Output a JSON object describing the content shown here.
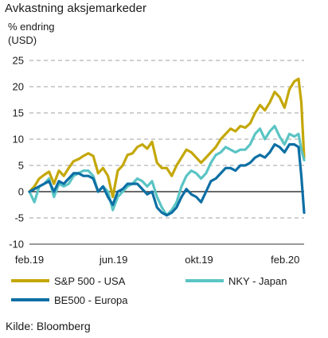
{
  "chart_data": {
    "type": "line",
    "title": "Avkastning aksjemarkeder",
    "ylabel": "% endring (USD)",
    "ylabel_lines": [
      "% endring",
      "(USD)"
    ],
    "ylim": [
      -10,
      25
    ],
    "yticks": [
      -10,
      -5,
      0,
      5,
      10,
      15,
      20,
      25
    ],
    "xlim": [
      "2019-02-01",
      "2020-02-28"
    ],
    "xticks": [
      {
        "label": "feb.19",
        "date": "2019-02-01"
      },
      {
        "label": "jun.19",
        "date": "2019-06-01"
      },
      {
        "label": "okt.19",
        "date": "2019-10-01"
      },
      {
        "label": "feb.20",
        "date": "2020-02-01"
      }
    ],
    "grid": "horizontal-dashed",
    "legend_position": "bottom",
    "series": [
      {
        "name": "S&P 500 - USA",
        "color": "#c4a707",
        "points": [
          [
            "2019-02-01",
            0
          ],
          [
            "2019-02-08",
            1
          ],
          [
            "2019-02-15",
            2.5
          ],
          [
            "2019-02-22",
            3.2
          ],
          [
            "2019-03-01",
            3.8
          ],
          [
            "2019-03-08",
            1.5
          ],
          [
            "2019-03-15",
            4
          ],
          [
            "2019-03-22",
            3
          ],
          [
            "2019-03-29",
            4.5
          ],
          [
            "2019-04-05",
            5.8
          ],
          [
            "2019-04-12",
            6.2
          ],
          [
            "2019-04-19",
            6.8
          ],
          [
            "2019-04-26",
            7.3
          ],
          [
            "2019-05-03",
            6.8
          ],
          [
            "2019-05-10",
            3.5
          ],
          [
            "2019-05-17",
            4.5
          ],
          [
            "2019-05-24",
            3
          ],
          [
            "2019-05-31",
            -1
          ],
          [
            "2019-06-07",
            4
          ],
          [
            "2019-06-14",
            5
          ],
          [
            "2019-06-21",
            7
          ],
          [
            "2019-06-28",
            7.3
          ],
          [
            "2019-07-05",
            8.5
          ],
          [
            "2019-07-12",
            9
          ],
          [
            "2019-07-19",
            8.2
          ],
          [
            "2019-07-26",
            9.5
          ],
          [
            "2019-08-02",
            5.5
          ],
          [
            "2019-08-09",
            4.5
          ],
          [
            "2019-08-16",
            4.5
          ],
          [
            "2019-08-23",
            3
          ],
          [
            "2019-08-30",
            5
          ],
          [
            "2019-09-06",
            6.5
          ],
          [
            "2019-09-13",
            8
          ],
          [
            "2019-09-20",
            7.5
          ],
          [
            "2019-09-27",
            6.5
          ],
          [
            "2019-10-04",
            5.5
          ],
          [
            "2019-10-11",
            6.5
          ],
          [
            "2019-10-18",
            7.5
          ],
          [
            "2019-10-25",
            8.5
          ],
          [
            "2019-11-01",
            10
          ],
          [
            "2019-11-08",
            11
          ],
          [
            "2019-11-15",
            12
          ],
          [
            "2019-11-22",
            11.5
          ],
          [
            "2019-11-29",
            12.5
          ],
          [
            "2019-12-06",
            12.2
          ],
          [
            "2019-12-13",
            13
          ],
          [
            "2019-12-20",
            15
          ],
          [
            "2019-12-27",
            16.5
          ],
          [
            "2020-01-03",
            15.5
          ],
          [
            "2020-01-10",
            17
          ],
          [
            "2020-01-17",
            19
          ],
          [
            "2020-01-24",
            18
          ],
          [
            "2020-01-31",
            16
          ],
          [
            "2020-02-07",
            19.5
          ],
          [
            "2020-02-14",
            21
          ],
          [
            "2020-02-20",
            21.5
          ],
          [
            "2020-02-24",
            17
          ],
          [
            "2020-02-28",
            6.5
          ]
        ]
      },
      {
        "name": "NKY - Japan",
        "color": "#5bc4c4",
        "points": [
          [
            "2019-02-01",
            0
          ],
          [
            "2019-02-08",
            -2
          ],
          [
            "2019-02-15",
            1
          ],
          [
            "2019-02-22",
            1.5
          ],
          [
            "2019-03-01",
            2.5
          ],
          [
            "2019-03-08",
            -1
          ],
          [
            "2019-03-15",
            1.5
          ],
          [
            "2019-03-22",
            1
          ],
          [
            "2019-03-29",
            1.5
          ],
          [
            "2019-04-05",
            3
          ],
          [
            "2019-04-12",
            3.5
          ],
          [
            "2019-04-19",
            4
          ],
          [
            "2019-04-26",
            4
          ],
          [
            "2019-05-03",
            3
          ],
          [
            "2019-05-10",
            0
          ],
          [
            "2019-05-17",
            1
          ],
          [
            "2019-05-24",
            0
          ],
          [
            "2019-05-31",
            -3.5
          ],
          [
            "2019-06-07",
            -1
          ],
          [
            "2019-06-14",
            0
          ],
          [
            "2019-06-21",
            1
          ],
          [
            "2019-06-28",
            1.5
          ],
          [
            "2019-07-05",
            2.5
          ],
          [
            "2019-07-12",
            2
          ],
          [
            "2019-07-19",
            1
          ],
          [
            "2019-07-26",
            2
          ],
          [
            "2019-08-02",
            -1
          ],
          [
            "2019-08-09",
            -3
          ],
          [
            "2019-08-16",
            -4.5
          ],
          [
            "2019-08-23",
            -3.5
          ],
          [
            "2019-08-30",
            -2
          ],
          [
            "2019-09-06",
            1
          ],
          [
            "2019-09-13",
            3
          ],
          [
            "2019-09-20",
            4
          ],
          [
            "2019-09-27",
            3.5
          ],
          [
            "2019-10-04",
            2.5
          ],
          [
            "2019-10-11",
            3.5
          ],
          [
            "2019-10-18",
            5.5
          ],
          [
            "2019-10-25",
            7
          ],
          [
            "2019-11-01",
            7.5
          ],
          [
            "2019-11-08",
            8.5
          ],
          [
            "2019-11-15",
            8
          ],
          [
            "2019-11-22",
            7.5
          ],
          [
            "2019-11-29",
            8
          ],
          [
            "2019-12-06",
            8
          ],
          [
            "2019-12-13",
            9
          ],
          [
            "2019-12-20",
            11
          ],
          [
            "2019-12-27",
            12
          ],
          [
            "2020-01-03",
            10
          ],
          [
            "2020-01-10",
            11.5
          ],
          [
            "2020-01-17",
            12.5
          ],
          [
            "2020-01-24",
            10.5
          ],
          [
            "2020-01-31",
            9
          ],
          [
            "2020-02-07",
            11
          ],
          [
            "2020-02-14",
            10.5
          ],
          [
            "2020-02-20",
            11
          ],
          [
            "2020-02-24",
            8
          ],
          [
            "2020-02-28",
            6
          ]
        ]
      },
      {
        "name": "BE500 - Europa",
        "color": "#0d6fa4",
        "points": [
          [
            "2019-02-01",
            0
          ],
          [
            "2019-02-08",
            0.5
          ],
          [
            "2019-02-15",
            1
          ],
          [
            "2019-02-22",
            1.5
          ],
          [
            "2019-03-01",
            2
          ],
          [
            "2019-03-08",
            0
          ],
          [
            "2019-03-15",
            2
          ],
          [
            "2019-03-22",
            1.5
          ],
          [
            "2019-03-29",
            2.5
          ],
          [
            "2019-04-05",
            3.5
          ],
          [
            "2019-04-12",
            3.5
          ],
          [
            "2019-04-19",
            3
          ],
          [
            "2019-04-26",
            3
          ],
          [
            "2019-05-03",
            2.5
          ],
          [
            "2019-05-10",
            0
          ],
          [
            "2019-05-17",
            1
          ],
          [
            "2019-05-24",
            -1
          ],
          [
            "2019-05-31",
            -2.5
          ],
          [
            "2019-06-07",
            0
          ],
          [
            "2019-06-14",
            0.5
          ],
          [
            "2019-06-21",
            1.5
          ],
          [
            "2019-06-28",
            1.5
          ],
          [
            "2019-07-05",
            1.5
          ],
          [
            "2019-07-12",
            0.5
          ],
          [
            "2019-07-19",
            -0.5
          ],
          [
            "2019-07-26",
            0
          ],
          [
            "2019-08-02",
            -3
          ],
          [
            "2019-08-09",
            -4
          ],
          [
            "2019-08-16",
            -4.5
          ],
          [
            "2019-08-23",
            -4
          ],
          [
            "2019-08-30",
            -3
          ],
          [
            "2019-09-06",
            -1
          ],
          [
            "2019-09-13",
            0.5
          ],
          [
            "2019-09-20",
            -0.5
          ],
          [
            "2019-09-27",
            -1
          ],
          [
            "2019-10-04",
            -2
          ],
          [
            "2019-10-11",
            0
          ],
          [
            "2019-10-18",
            2
          ],
          [
            "2019-10-25",
            2.5
          ],
          [
            "2019-11-01",
            3.5
          ],
          [
            "2019-11-08",
            4.5
          ],
          [
            "2019-11-15",
            4.5
          ],
          [
            "2019-11-22",
            4
          ],
          [
            "2019-11-29",
            5
          ],
          [
            "2019-12-06",
            5
          ],
          [
            "2019-12-13",
            5.5
          ],
          [
            "2019-12-20",
            6.5
          ],
          [
            "2019-12-27",
            7
          ],
          [
            "2020-01-03",
            6.5
          ],
          [
            "2020-01-10",
            7.5
          ],
          [
            "2020-01-17",
            9
          ],
          [
            "2020-01-24",
            8.5
          ],
          [
            "2020-01-31",
            7.5
          ],
          [
            "2020-02-07",
            9
          ],
          [
            "2020-02-14",
            9
          ],
          [
            "2020-02-20",
            8.5
          ],
          [
            "2020-02-24",
            3
          ],
          [
            "2020-02-28",
            -4
          ]
        ]
      }
    ]
  },
  "source": "Kilde: Bloomberg"
}
